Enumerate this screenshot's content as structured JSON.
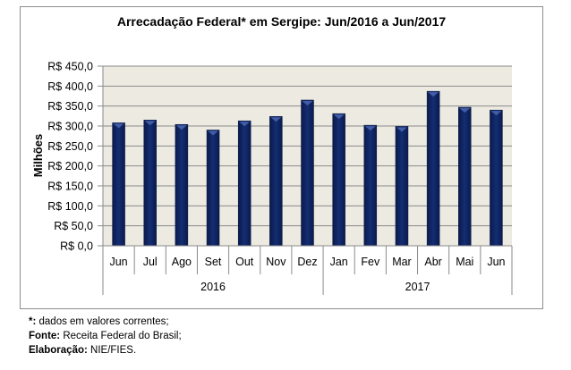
{
  "chart_data": {
    "type": "bar",
    "title": "Arrecadação Federal* em Sergipe: Jun/2016 a Jun/2017",
    "xlabel": "",
    "ylabel": "Milhões",
    "ylim": [
      0,
      450
    ],
    "yticks": [
      "R$ 0,0",
      "R$ 50,0",
      "R$ 100,0",
      "R$ 150,0",
      "R$ 200,0",
      "R$ 250,0",
      "R$ 300,0",
      "R$ 350,0",
      "R$ 400,0",
      "R$ 450,0"
    ],
    "ytick_values": [
      0,
      50,
      100,
      150,
      200,
      250,
      300,
      350,
      400,
      450
    ],
    "categories": [
      "Jun",
      "Jul",
      "Ago",
      "Set",
      "Out",
      "Nov",
      "Dez",
      "Jan",
      "Fev",
      "Mar",
      "Abr",
      "Mai",
      "Jun"
    ],
    "groups": [
      {
        "label": "2016",
        "count": 7
      },
      {
        "label": "2017",
        "count": 6
      }
    ],
    "values": [
      308,
      315,
      304,
      290,
      313,
      324,
      365,
      331,
      302,
      299,
      387,
      347,
      340
    ],
    "grid": true,
    "bar_color": "#0f2461",
    "plot_bg": "#edeae1"
  },
  "notes": {
    "line1_key": "*:",
    "line1_text": " dados em valores correntes;",
    "line2_key": "Fonte:",
    "line2_text": " Receita Federal do Brasil;",
    "line3_key": "Elaboração:",
    "line3_text": " NIE/FIES."
  }
}
